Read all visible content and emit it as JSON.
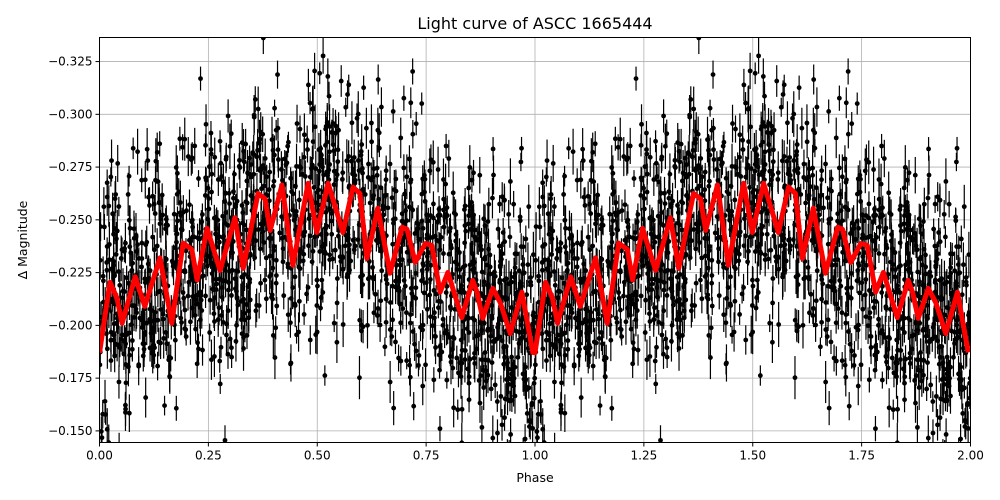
{
  "chart_data": {
    "type": "scatter",
    "title": "Light curve of ASCC 1665444",
    "xlabel": "Phase",
    "ylabel": "Δ Magnitude",
    "xlim": [
      0.0,
      2.0
    ],
    "ylim": [
      -0.1445,
      -0.3364
    ],
    "y_inverted": true,
    "grid": true,
    "xticks": [
      "0.00",
      "0.25",
      "0.50",
      "0.75",
      "1.00",
      "1.25",
      "1.50",
      "1.75",
      "2.00"
    ],
    "yticks": [
      "−0.325",
      "−0.300",
      "−0.275",
      "−0.250",
      "−0.225",
      "−0.200",
      "−0.175",
      "−0.150"
    ],
    "colors": {
      "data": "#000000",
      "model": "#ff0000",
      "grid": "#b0b0b0"
    },
    "series": [
      {
        "type": "errorbar-scatter",
        "color": "#000000"
      },
      {
        "type": "line",
        "color": "#ff0000",
        "x": [
          0.0,
          0.024,
          0.04,
          0.052,
          0.082,
          0.104,
          0.139,
          0.166,
          0.192,
          0.212,
          0.224,
          0.247,
          0.277,
          0.311,
          0.33,
          0.364,
          0.38,
          0.392,
          0.419,
          0.444,
          0.479,
          0.499,
          0.525,
          0.559,
          0.582,
          0.598,
          0.614,
          0.639,
          0.667,
          0.695,
          0.706,
          0.725,
          0.748,
          0.763,
          0.782,
          0.8,
          0.832,
          0.857,
          0.867,
          0.88,
          0.903,
          0.92,
          0.943,
          0.97,
          0.995,
          1.0,
          1.024,
          1.04,
          1.052,
          1.082,
          1.104,
          1.139,
          1.166,
          1.192,
          1.212,
          1.224,
          1.247,
          1.277,
          1.311,
          1.33,
          1.364,
          1.38,
          1.392,
          1.419,
          1.444,
          1.479,
          1.499,
          1.525,
          1.559,
          1.582,
          1.598,
          1.614,
          1.639,
          1.667,
          1.695,
          1.706,
          1.725,
          1.748,
          1.763,
          1.782,
          1.8,
          1.832,
          1.857,
          1.867,
          1.88,
          1.903,
          1.92,
          1.943,
          1.97,
          1.995
        ],
        "y": [
          -0.187,
          -0.2204,
          -0.213,
          -0.201,
          -0.223,
          -0.209,
          -0.232,
          -0.201,
          -0.239,
          -0.236,
          -0.2215,
          -0.246,
          -0.226,
          -0.251,
          -0.227,
          -0.2625,
          -0.26,
          -0.245,
          -0.2665,
          -0.2285,
          -0.2673,
          -0.244,
          -0.2673,
          -0.244,
          -0.2655,
          -0.2625,
          -0.2317,
          -0.2555,
          -0.2247,
          -0.2465,
          -0.2455,
          -0.2299,
          -0.2388,
          -0.2379,
          -0.2157,
          -0.2251,
          -0.2037,
          -0.2213,
          -0.2157,
          -0.2033,
          -0.2175,
          -0.2109,
          -0.1962,
          -0.2157,
          -0.1872,
          -0.187,
          -0.2204,
          -0.213,
          -0.201,
          -0.223,
          -0.209,
          -0.232,
          -0.201,
          -0.239,
          -0.236,
          -0.2215,
          -0.246,
          -0.226,
          -0.251,
          -0.227,
          -0.2625,
          -0.26,
          -0.245,
          -0.2665,
          -0.2285,
          -0.2673,
          -0.244,
          -0.2673,
          -0.244,
          -0.2655,
          -0.2625,
          -0.2317,
          -0.2555,
          -0.2247,
          -0.2465,
          -0.2455,
          -0.2299,
          -0.2388,
          -0.2379,
          -0.2157,
          -0.2251,
          -0.2037,
          -0.2213,
          -0.2157,
          -0.2033,
          -0.2175,
          -0.2109,
          -0.1962,
          -0.2157,
          -0.1872
        ]
      }
    ]
  }
}
